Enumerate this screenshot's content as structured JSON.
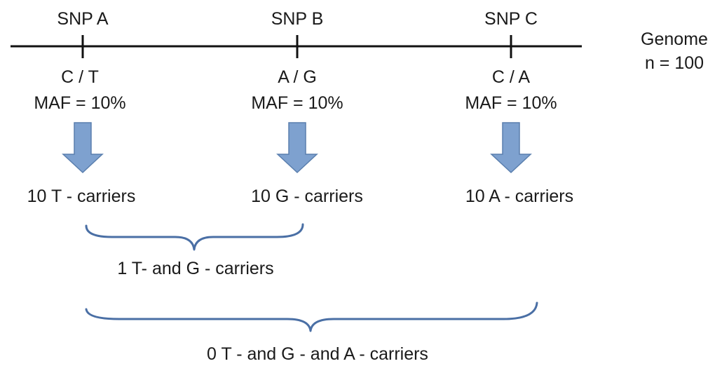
{
  "genome": {
    "label": "Genome",
    "n_label": "n = 100"
  },
  "snps": [
    {
      "name": "SNP A",
      "alleles": "C / T",
      "maf": "MAF = 10%",
      "carriers": "10 T - carriers"
    },
    {
      "name": "SNP B",
      "alleles": "A / G",
      "maf": "MAF = 10%",
      "carriers": "10 G - carriers"
    },
    {
      "name": "SNP C",
      "alleles": "C / A",
      "maf": "MAF = 10%",
      "carriers": "10 A - carriers"
    }
  ],
  "combined": {
    "pair_label": "1 T- and G - carriers",
    "triple_label": "0 T - and G - and A - carriers"
  },
  "colors": {
    "arrow_fill": "#7ea1cf",
    "arrow_stroke": "#5a7fae",
    "brace": "#4a6fa5",
    "line": "#111111"
  }
}
